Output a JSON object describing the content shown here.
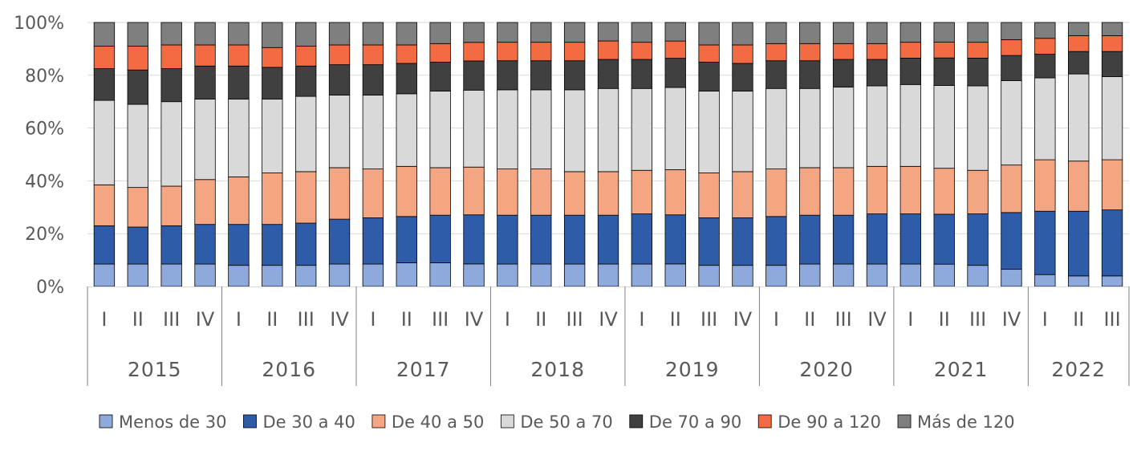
{
  "chart_data": {
    "type": "bar",
    "stacked": true,
    "percent": true,
    "ylim": [
      0,
      100
    ],
    "yticks": [
      "0%",
      "20%",
      "40%",
      "60%",
      "80%",
      "100%"
    ],
    "grid": true,
    "legend": "bottom",
    "quarters": [
      "I",
      "II",
      "III",
      "IV",
      "I",
      "II",
      "III",
      "IV",
      "I",
      "II",
      "III",
      "IV",
      "I",
      "II",
      "III",
      "IV",
      "I",
      "II",
      "III",
      "IV",
      "I",
      "II",
      "III",
      "IV",
      "I",
      "II",
      "III",
      "IV",
      "I",
      "II",
      "III"
    ],
    "years": [
      {
        "label": "2015",
        "start": 0,
        "count": 4
      },
      {
        "label": "2016",
        "start": 4,
        "count": 4
      },
      {
        "label": "2017",
        "start": 8,
        "count": 4
      },
      {
        "label": "2018",
        "start": 12,
        "count": 4
      },
      {
        "label": "2019",
        "start": 16,
        "count": 4
      },
      {
        "label": "2020",
        "start": 20,
        "count": 4
      },
      {
        "label": "2021",
        "start": 24,
        "count": 4
      },
      {
        "label": "2022",
        "start": 28,
        "count": 3
      }
    ],
    "series": [
      {
        "name": "Menos de 30",
        "color": "#8EA9DB",
        "values": [
          8.5,
          8.5,
          8.5,
          8.5,
          8,
          8,
          8,
          8.5,
          8.5,
          9,
          9,
          8.5,
          8.5,
          8.5,
          8.5,
          8.5,
          8.5,
          8.5,
          8,
          8,
          8,
          8.5,
          8.5,
          8.5,
          8.5,
          8.5,
          8,
          6.5,
          4.5,
          4,
          4
        ]
      },
      {
        "name": "De 30 a 40",
        "color": "#2F5CA9",
        "values": [
          14.5,
          14,
          14.5,
          15,
          15.5,
          15.5,
          16,
          17,
          17.5,
          17.5,
          18,
          18.5,
          18.5,
          18.5,
          18.5,
          18.5,
          19,
          18.5,
          18,
          18,
          18.5,
          18.5,
          18.5,
          19,
          19,
          19,
          19.5,
          21.5,
          24,
          24.5,
          25
        ]
      },
      {
        "name": "De 40 a 50",
        "color": "#F4A582",
        "values": [
          15.5,
          15,
          15,
          17,
          18,
          19.5,
          19.5,
          19.5,
          18.5,
          19,
          18,
          18,
          17.5,
          17.5,
          16.5,
          16.5,
          16.5,
          17,
          17,
          17.5,
          18,
          18,
          18,
          18,
          18,
          17.5,
          16.5,
          18,
          19.5,
          19,
          19
        ]
      },
      {
        "name": "De 50 a 70",
        "color": "#D9D9D9",
        "values": [
          32,
          31.5,
          32,
          30.5,
          29.5,
          28,
          28.5,
          27.5,
          28,
          27.5,
          29,
          29,
          30,
          30,
          31,
          31.5,
          31,
          31,
          31,
          30.5,
          30.5,
          30,
          30.5,
          30.5,
          31,
          31.5,
          32,
          32,
          31,
          33,
          31.5
        ]
      },
      {
        "name": "De 70 a 90",
        "color": "#404040",
        "values": [
          12,
          13,
          12.5,
          12.5,
          12.5,
          12,
          11.5,
          11.5,
          11.5,
          11.5,
          11,
          11,
          11,
          11,
          11,
          11,
          11,
          11,
          11,
          10.5,
          10.5,
          10.5,
          10.5,
          10,
          10,
          10.5,
          10.5,
          9.5,
          9,
          8.5,
          9.5
        ]
      },
      {
        "name": "De 90 a 120",
        "color": "#F26B43",
        "values": [
          8.5,
          9,
          9,
          8,
          8,
          7.5,
          7.5,
          7.5,
          7.5,
          7,
          7,
          7,
          7,
          7,
          7,
          7,
          6.5,
          6.5,
          6.5,
          7,
          6.5,
          6.5,
          6,
          6,
          6,
          6,
          6,
          6,
          6,
          6,
          6
        ]
      },
      {
        "name": "Más de 120",
        "color": "#7F7F7F",
        "values": [
          9,
          9,
          8.5,
          8.5,
          8.5,
          9.5,
          9,
          8.5,
          8.5,
          8.5,
          8,
          7.5,
          7.5,
          7.5,
          7.5,
          7,
          7.5,
          7,
          8.5,
          8.5,
          8,
          8,
          8,
          8,
          7.5,
          7.5,
          7.5,
          6.5,
          6,
          5,
          5
        ]
      }
    ]
  }
}
